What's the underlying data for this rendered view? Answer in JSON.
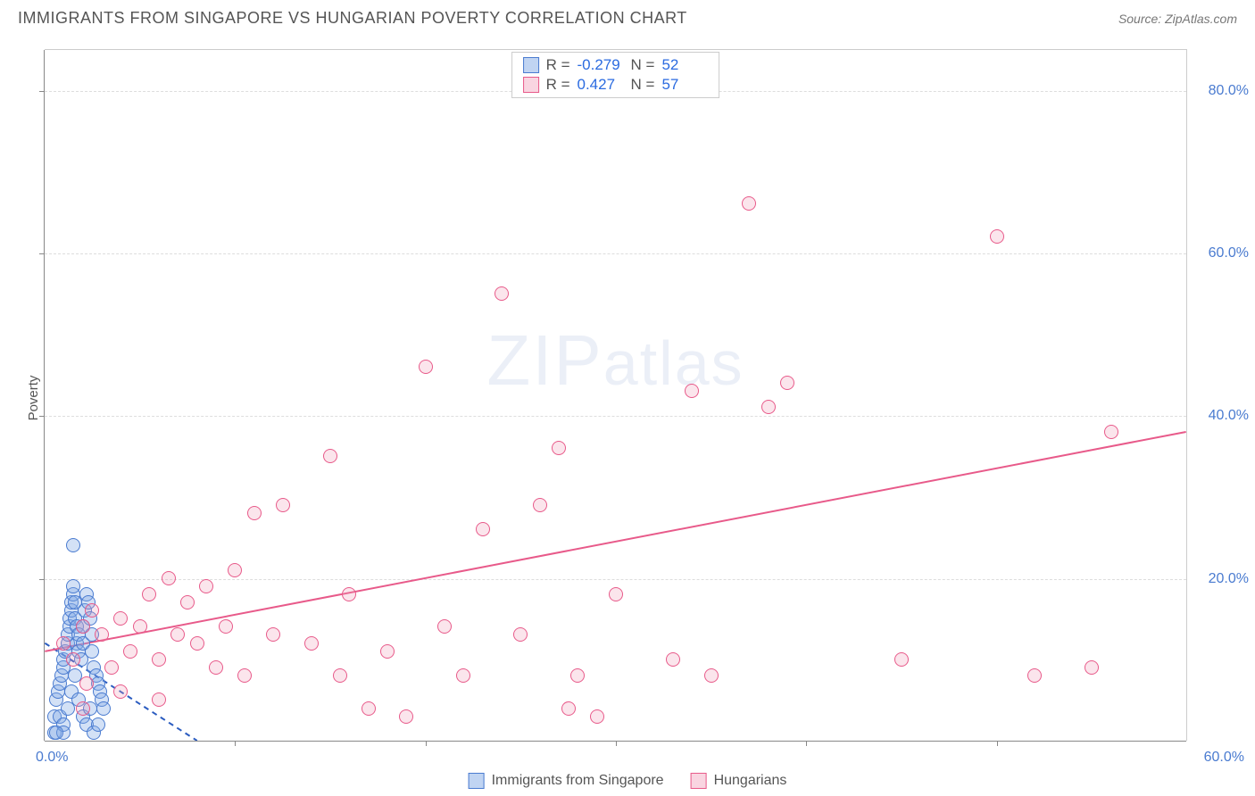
{
  "header": {
    "title": "IMMIGRANTS FROM SINGAPORE VS HUNGARIAN POVERTY CORRELATION CHART",
    "source_prefix": "Source: ",
    "source_name": "ZipAtlas.com"
  },
  "watermark": {
    "big": "ZIP",
    "small": "atlas"
  },
  "chart": {
    "type": "scatter",
    "ylabel": "Poverty",
    "xlim": [
      0,
      60
    ],
    "ylim": [
      0,
      85
    ],
    "x_tick_step": 10,
    "y_ticks": [
      20,
      40,
      60,
      80
    ],
    "y_tick_labels": [
      "20.0%",
      "40.0%",
      "60.0%",
      "80.0%"
    ],
    "x_origin_label": "0.0%",
    "x_end_label": "60.0%",
    "grid_color": "#dddddd",
    "axis_color": "#888888",
    "tick_label_color": "#4a7bd0",
    "background_color": "#ffffff",
    "series": [
      {
        "name": "Immigrants from Singapore",
        "color_fill": "rgba(130,170,230,0.35)",
        "color_stroke": "#4a7bd0",
        "r_value": "-0.279",
        "n_value": "52",
        "trend": {
          "x1": 0,
          "y1": 12,
          "x2": 8,
          "y2": 0,
          "dash": true,
          "color": "#2b5cc0",
          "width": 2
        },
        "points": [
          [
            0.5,
            1
          ],
          [
            0.5,
            3
          ],
          [
            0.6,
            5
          ],
          [
            0.7,
            6
          ],
          [
            0.8,
            7
          ],
          [
            0.9,
            8
          ],
          [
            1.0,
            9
          ],
          [
            1.0,
            10
          ],
          [
            1.1,
            11
          ],
          [
            1.2,
            12
          ],
          [
            1.2,
            13
          ],
          [
            1.3,
            14
          ],
          [
            1.3,
            15
          ],
          [
            1.4,
            16
          ],
          [
            1.4,
            17
          ],
          [
            1.5,
            18
          ],
          [
            1.5,
            19
          ],
          [
            1.6,
            17
          ],
          [
            1.6,
            15
          ],
          [
            1.7,
            14
          ],
          [
            1.7,
            12
          ],
          [
            1.8,
            13
          ],
          [
            1.8,
            11
          ],
          [
            1.9,
            10
          ],
          [
            2.0,
            12
          ],
          [
            2.0,
            14
          ],
          [
            2.1,
            16
          ],
          [
            2.2,
            18
          ],
          [
            2.3,
            17
          ],
          [
            2.4,
            15
          ],
          [
            2.5,
            13
          ],
          [
            2.5,
            11
          ],
          [
            2.6,
            9
          ],
          [
            2.7,
            8
          ],
          [
            2.8,
            7
          ],
          [
            2.9,
            6
          ],
          [
            3.0,
            5
          ],
          [
            3.1,
            4
          ],
          [
            1.5,
            24
          ],
          [
            0.8,
            3
          ],
          [
            1.0,
            2
          ],
          [
            1.2,
            4
          ],
          [
            1.4,
            6
          ],
          [
            1.6,
            8
          ],
          [
            1.8,
            5
          ],
          [
            2.0,
            3
          ],
          [
            2.2,
            2
          ],
          [
            2.4,
            4
          ],
          [
            2.6,
            1
          ],
          [
            2.8,
            2
          ],
          [
            1.0,
            1
          ],
          [
            0.6,
            1
          ]
        ]
      },
      {
        "name": "Hungarians",
        "color_fill": "rgba(240,150,180,0.25)",
        "color_stroke": "#e85a8a",
        "r_value": "0.427",
        "n_value": "57",
        "trend": {
          "x1": 0,
          "y1": 11,
          "x2": 60,
          "y2": 38,
          "dash": false,
          "color": "#e85a8a",
          "width": 2
        },
        "points": [
          [
            1,
            12
          ],
          [
            1.5,
            10
          ],
          [
            2,
            14
          ],
          [
            2.2,
            7
          ],
          [
            2.5,
            16
          ],
          [
            3,
            13
          ],
          [
            3.5,
            9
          ],
          [
            4,
            15
          ],
          [
            4.5,
            11
          ],
          [
            5,
            14
          ],
          [
            5.5,
            18
          ],
          [
            6,
            10
          ],
          [
            6.5,
            20
          ],
          [
            7,
            13
          ],
          [
            7.5,
            17
          ],
          [
            8,
            12
          ],
          [
            8.5,
            19
          ],
          [
            9,
            9
          ],
          [
            9.5,
            14
          ],
          [
            10,
            21
          ],
          [
            10.5,
            8
          ],
          [
            11,
            28
          ],
          [
            12,
            13
          ],
          [
            12.5,
            29
          ],
          [
            14,
            12
          ],
          [
            15,
            35
          ],
          [
            15.5,
            8
          ],
          [
            16,
            18
          ],
          [
            17,
            4
          ],
          [
            18,
            11
          ],
          [
            19,
            3
          ],
          [
            20,
            46
          ],
          [
            21,
            14
          ],
          [
            22,
            8
          ],
          [
            23,
            26
          ],
          [
            24,
            55
          ],
          [
            25,
            13
          ],
          [
            26,
            29
          ],
          [
            27,
            36
          ],
          [
            27.5,
            4
          ],
          [
            28,
            8
          ],
          [
            29,
            3
          ],
          [
            30,
            18
          ],
          [
            33,
            10
          ],
          [
            34,
            43
          ],
          [
            35,
            8
          ],
          [
            37,
            66
          ],
          [
            38,
            41
          ],
          [
            39,
            44
          ],
          [
            45,
            10
          ],
          [
            50,
            62
          ],
          [
            52,
            8
          ],
          [
            55,
            9
          ],
          [
            56,
            38
          ],
          [
            2,
            4
          ],
          [
            4,
            6
          ],
          [
            6,
            5
          ]
        ]
      }
    ]
  },
  "legend_top": {
    "r_label": "R =",
    "n_label": "N ="
  },
  "legend_bottom": {
    "series1_label": "Immigrants from Singapore",
    "series2_label": "Hungarians"
  }
}
